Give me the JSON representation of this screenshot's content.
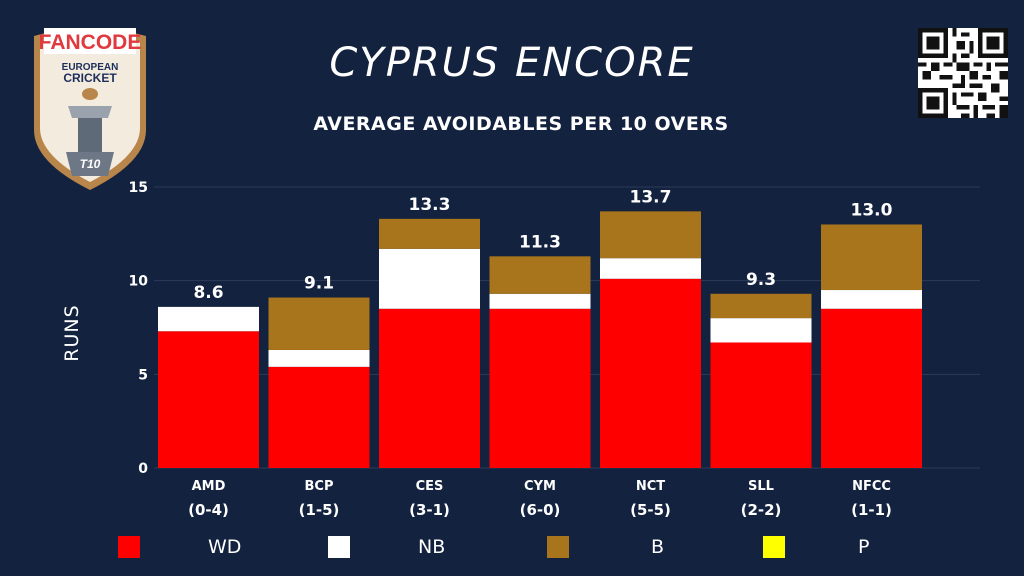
{
  "header": {
    "title": "CYPRUS ENCORE",
    "subtitle": "AVERAGE AVOIDABLES PER 10 OVERS"
  },
  "logo": {
    "brand": "FANCODE",
    "line1": "EUROPEAN",
    "line2": "CRICKET",
    "badge": "T10"
  },
  "qr": {
    "icon": "qr-code-icon"
  },
  "colors": {
    "background": "#13223f",
    "WD": "#ff0000",
    "NB": "#ffffff",
    "B": "#a8741c",
    "P": "#ffff00"
  },
  "chart_data": {
    "type": "bar",
    "stacked": true,
    "categories": [
      "AMD",
      "BCP",
      "CES",
      "CYM",
      "NCT",
      "SLL",
      "NFCC"
    ],
    "records": [
      "(0-4)",
      "(1-5)",
      "(3-1)",
      "(6-0)",
      "(5-5)",
      "(2-2)",
      "(1-1)"
    ],
    "series": [
      {
        "name": "WD",
        "values": [
          7.3,
          5.4,
          8.5,
          8.5,
          10.1,
          6.7,
          8.5
        ]
      },
      {
        "name": "NB",
        "values": [
          1.3,
          0.9,
          3.2,
          0.8,
          1.1,
          1.3,
          1.0
        ]
      },
      {
        "name": "B",
        "values": [
          0.0,
          2.8,
          1.6,
          2.0,
          2.5,
          1.3,
          3.5
        ]
      },
      {
        "name": "P",
        "values": [
          0,
          0,
          0,
          0,
          0,
          0,
          0
        ]
      }
    ],
    "totals": [
      "8.6",
      "9.1",
      "13.3",
      "11.3",
      "13.7",
      "9.3",
      "13.0"
    ],
    "ylabel": "RUNS",
    "ylim": [
      0,
      15
    ],
    "yticks": [
      0,
      5,
      10,
      15
    ],
    "grid": true,
    "legend": {
      "position": "bottom",
      "items": [
        "WD",
        "NB",
        "B",
        "P"
      ]
    }
  }
}
